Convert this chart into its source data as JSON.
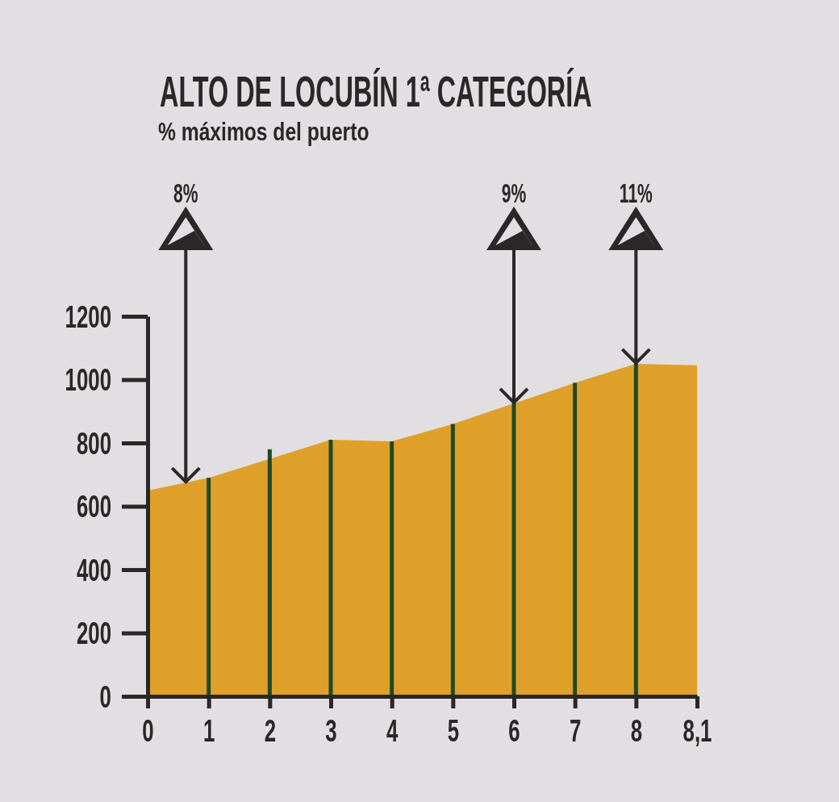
{
  "chart_data": {
    "type": "area",
    "title": "ALTO DE LOCUBÍN 1ª CATEGORÍA",
    "subtitle": "% máximos del puerto",
    "categories": [
      "0",
      "1",
      "2",
      "3",
      "4",
      "5",
      "6",
      "7",
      "8",
      "8,1"
    ],
    "series": [
      {
        "color": "#dfa02a",
        "values": [
          650,
          690,
          750,
          810,
          805,
          860,
          925,
          990,
          1050,
          1045
        ]
      },
      {
        "type": "bar",
        "color": "#1f4a22",
        "values": [
          null,
          690,
          780,
          810,
          805,
          860,
          925,
          990,
          1050,
          null
        ]
      }
    ],
    "ylim": [
      0,
      1200
    ],
    "yticks": [
      0,
      200,
      400,
      600,
      800,
      1000,
      1200
    ],
    "annotations": [
      {
        "text": "8%",
        "y": 675
      },
      {
        "text": "9%",
        "x": "6",
        "y": 925
      },
      {
        "text": "11%",
        "x": "8",
        "y": 1050
      }
    ]
  }
}
